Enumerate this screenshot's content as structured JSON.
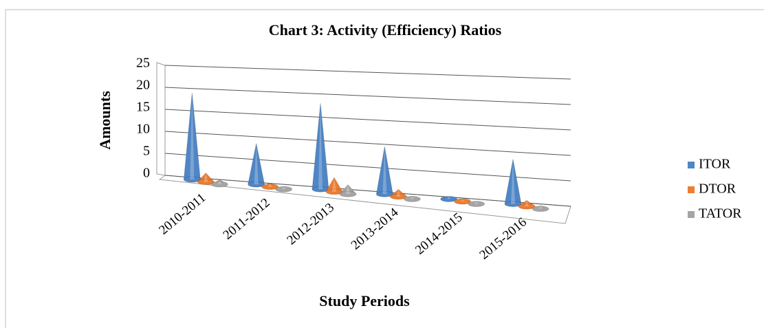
{
  "chart_data": {
    "type": "cone3d",
    "title": "Chart 3: Activity (Efficiency) Ratios",
    "x_label": "Study Periods",
    "y_label": "Amounts",
    "categories": [
      "2010-2011",
      "2011-2012",
      "2012-2013",
      "2013-2014",
      "2014-2015",
      "2015-2016"
    ],
    "series": [
      {
        "name": "ITOR",
        "color": "#4f86c6",
        "values": [
          19.5,
          9,
          18.5,
          10,
          0.5,
          9
        ]
      },
      {
        "name": "DTOR",
        "color": "#ed7d31",
        "values": [
          2,
          0.8,
          3,
          1.5,
          0.4,
          1.2
        ]
      },
      {
        "name": "TATOR",
        "color": "#a5a5a5",
        "values": [
          1,
          0.5,
          2,
          0.6,
          0.5,
          0.6
        ]
      }
    ],
    "ylim": [
      0,
      25
    ],
    "yticks": [
      0,
      5,
      10,
      15,
      20,
      25
    ],
    "grid": true,
    "legend": "right"
  }
}
